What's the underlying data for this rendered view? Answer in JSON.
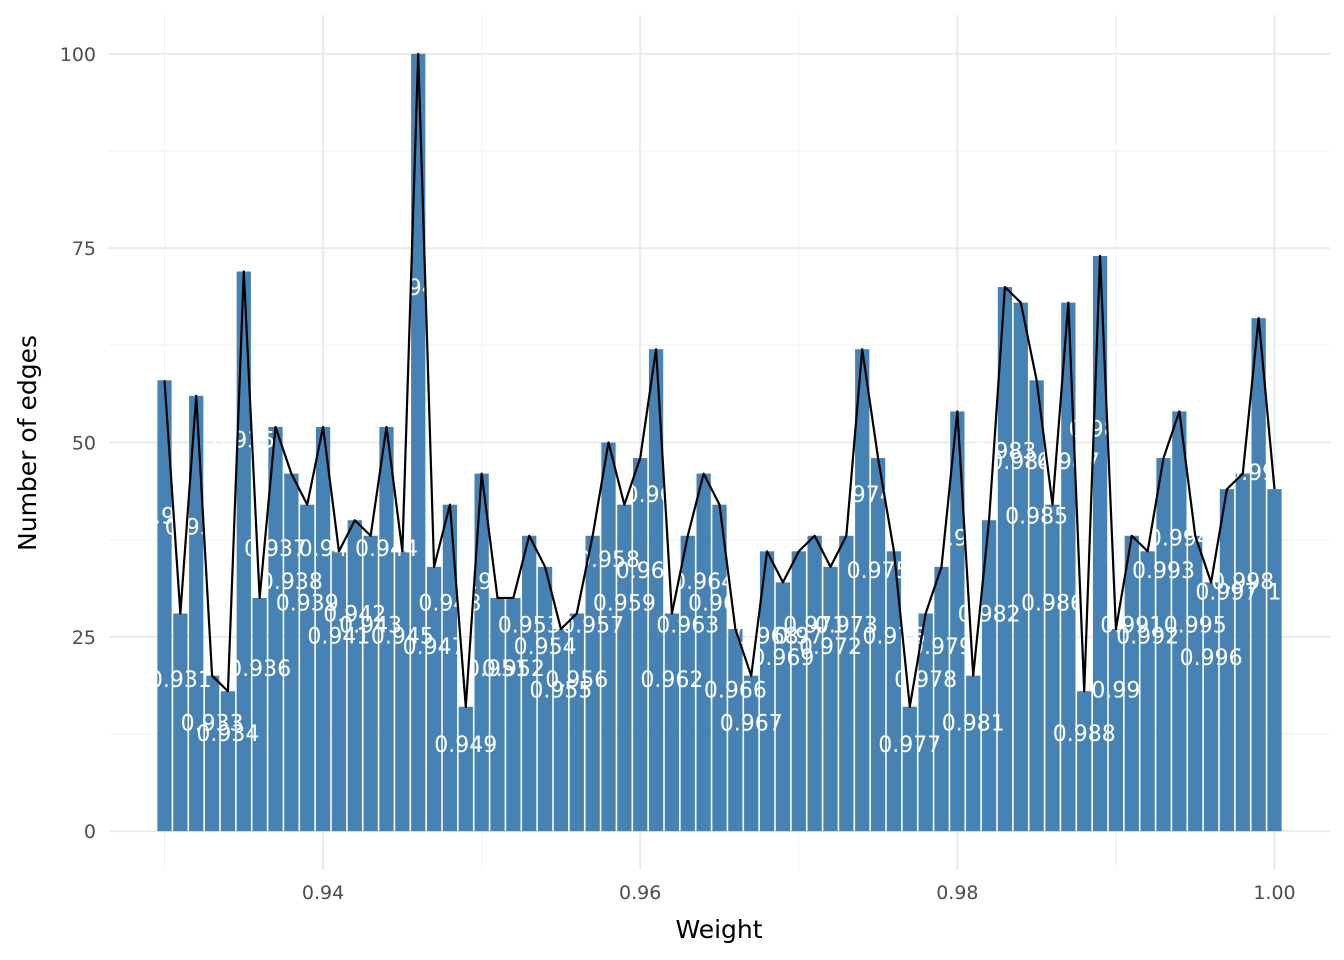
{
  "chart_data": {
    "type": "bar",
    "xlabel": "Weight",
    "ylabel": "Number of edges",
    "xlim": [
      0.9265,
      1.0035
    ],
    "ylim": [
      -5,
      105
    ],
    "xticks": [
      0.94,
      0.96,
      0.98,
      1.0
    ],
    "xtick_labels": [
      "0.94",
      "0.96",
      "0.98",
      "1.00"
    ],
    "yticks": [
      0,
      25,
      50,
      75,
      100
    ],
    "ytick_labels": [
      "0",
      "25",
      "50",
      "75",
      "100"
    ],
    "grid": true,
    "legend": "none",
    "bar_color": "#4682b4",
    "line_color": "#000000",
    "label_color": "#ffffff",
    "data": [
      {
        "x": 0.93,
        "y": 58,
        "label": "0.93"
      },
      {
        "x": 0.931,
        "y": 28,
        "label": "0.931"
      },
      {
        "x": 0.932,
        "y": 56,
        "label": "0.932"
      },
      {
        "x": 0.933,
        "y": 20,
        "label": "0.933"
      },
      {
        "x": 0.934,
        "y": 18,
        "label": "0.934"
      },
      {
        "x": 0.935,
        "y": 72,
        "label": "0.935"
      },
      {
        "x": 0.936,
        "y": 30,
        "label": "0.936"
      },
      {
        "x": 0.937,
        "y": 52,
        "label": "0.937"
      },
      {
        "x": 0.938,
        "y": 46,
        "label": "0.938"
      },
      {
        "x": 0.939,
        "y": 42,
        "label": "0.939"
      },
      {
        "x": 0.94,
        "y": 52,
        "label": "0.94"
      },
      {
        "x": 0.941,
        "y": 36,
        "label": "0.941"
      },
      {
        "x": 0.942,
        "y": 40,
        "label": "0.942"
      },
      {
        "x": 0.943,
        "y": 38,
        "label": "0.943"
      },
      {
        "x": 0.944,
        "y": 52,
        "label": "0.944"
      },
      {
        "x": 0.945,
        "y": 36,
        "label": "0.945"
      },
      {
        "x": 0.946,
        "y": 100,
        "label": "0.946"
      },
      {
        "x": 0.947,
        "y": 34,
        "label": "0.947"
      },
      {
        "x": 0.948,
        "y": 42,
        "label": "0.948"
      },
      {
        "x": 0.949,
        "y": 16,
        "label": "0.949"
      },
      {
        "x": 0.95,
        "y": 46,
        "label": "0.95"
      },
      {
        "x": 0.951,
        "y": 30,
        "label": "0.951"
      },
      {
        "x": 0.952,
        "y": 30,
        "label": "0.952"
      },
      {
        "x": 0.953,
        "y": 38,
        "label": "0.953"
      },
      {
        "x": 0.954,
        "y": 34,
        "label": "0.954"
      },
      {
        "x": 0.955,
        "y": 26,
        "label": "0.955"
      },
      {
        "x": 0.956,
        "y": 28,
        "label": "0.956"
      },
      {
        "x": 0.957,
        "y": 38,
        "label": "0.957"
      },
      {
        "x": 0.958,
        "y": 50,
        "label": "0.958"
      },
      {
        "x": 0.959,
        "y": 42,
        "label": "0.959"
      },
      {
        "x": 0.96,
        "y": 48,
        "label": "0.96"
      },
      {
        "x": 0.961,
        "y": 62,
        "label": "0.961"
      },
      {
        "x": 0.962,
        "y": 28,
        "label": "0.962"
      },
      {
        "x": 0.963,
        "y": 38,
        "label": "0.963"
      },
      {
        "x": 0.964,
        "y": 46,
        "label": "0.964"
      },
      {
        "x": 0.965,
        "y": 42,
        "label": "0.965"
      },
      {
        "x": 0.966,
        "y": 26,
        "label": "0.966"
      },
      {
        "x": 0.967,
        "y": 20,
        "label": "0.967"
      },
      {
        "x": 0.968,
        "y": 36,
        "label": "0.968"
      },
      {
        "x": 0.969,
        "y": 32,
        "label": "0.969"
      },
      {
        "x": 0.97,
        "y": 36,
        "label": "0.97"
      },
      {
        "x": 0.971,
        "y": 38,
        "label": "0.971"
      },
      {
        "x": 0.972,
        "y": 34,
        "label": "0.972"
      },
      {
        "x": 0.973,
        "y": 38,
        "label": "0.973"
      },
      {
        "x": 0.974,
        "y": 62,
        "label": "0.974"
      },
      {
        "x": 0.975,
        "y": 48,
        "label": "0.975"
      },
      {
        "x": 0.976,
        "y": 36,
        "label": "0.976"
      },
      {
        "x": 0.977,
        "y": 16,
        "label": "0.977"
      },
      {
        "x": 0.978,
        "y": 28,
        "label": "0.978"
      },
      {
        "x": 0.979,
        "y": 34,
        "label": "0.979"
      },
      {
        "x": 0.98,
        "y": 54,
        "label": "0.98"
      },
      {
        "x": 0.981,
        "y": 20,
        "label": "0.981"
      },
      {
        "x": 0.982,
        "y": 40,
        "label": "0.982"
      },
      {
        "x": 0.983,
        "y": 70,
        "label": "0.983"
      },
      {
        "x": 0.984,
        "y": 68,
        "label": "0.984"
      },
      {
        "x": 0.985,
        "y": 58,
        "label": "0.985"
      },
      {
        "x": 0.986,
        "y": 42,
        "label": "0.986"
      },
      {
        "x": 0.987,
        "y": 68,
        "label": "0.987"
      },
      {
        "x": 0.988,
        "y": 18,
        "label": "0.988"
      },
      {
        "x": 0.989,
        "y": 74,
        "label": "0.989"
      },
      {
        "x": 0.99,
        "y": 26,
        "label": "0.99"
      },
      {
        "x": 0.991,
        "y": 38,
        "label": "0.991"
      },
      {
        "x": 0.992,
        "y": 36,
        "label": "0.992"
      },
      {
        "x": 0.993,
        "y": 48,
        "label": "0.993"
      },
      {
        "x": 0.994,
        "y": 54,
        "label": "0.994"
      },
      {
        "x": 0.995,
        "y": 38,
        "label": "0.995"
      },
      {
        "x": 0.996,
        "y": 32,
        "label": "0.996"
      },
      {
        "x": 0.997,
        "y": 44,
        "label": "0.997"
      },
      {
        "x": 0.998,
        "y": 46,
        "label": "0.998"
      },
      {
        "x": 0.999,
        "y": 66,
        "label": "0.999"
      },
      {
        "x": 1.0,
        "y": 44,
        "label": "1"
      }
    ]
  }
}
